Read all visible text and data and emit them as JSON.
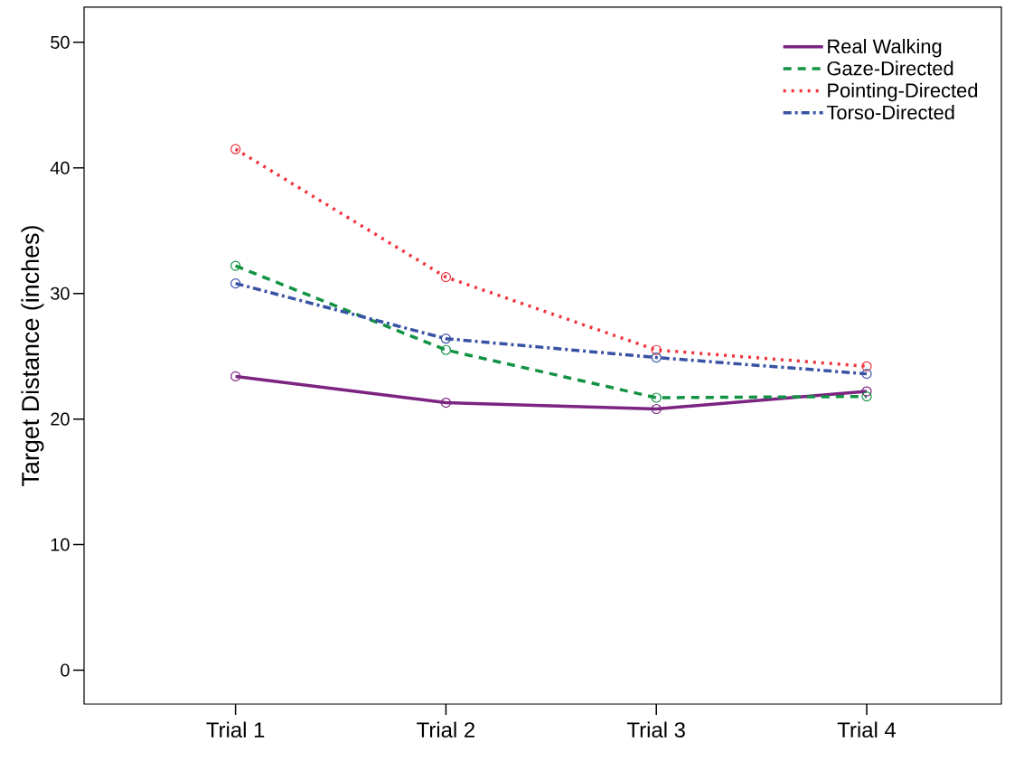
{
  "chart_data": {
    "type": "line",
    "ylabel": "Target Distance (inches)",
    "categories": [
      "Trial 1",
      "Trial 2",
      "Trial 3",
      "Trial 4"
    ],
    "ylim": [
      -2.7,
      52.8
    ],
    "yticks": [
      0,
      10,
      20,
      30,
      40,
      50
    ],
    "series": [
      {
        "name": "Real Walking",
        "color": "#7b2481",
        "line_style": "solid",
        "values": [
          23.4,
          21.3,
          20.8,
          22.2
        ]
      },
      {
        "name": "Gaze-Directed",
        "color": "#139244",
        "line_style": "dashed",
        "values": [
          32.2,
          25.5,
          21.7,
          21.8
        ]
      },
      {
        "name": "Pointing-Directed",
        "color": "#f0323b",
        "line_style": "dotted",
        "values": [
          41.5,
          31.3,
          25.5,
          24.2
        ]
      },
      {
        "name": "Torso-Directed",
        "color": "#3953a4",
        "line_style": "dashdot",
        "values": [
          30.8,
          26.4,
          24.9,
          23.6
        ]
      }
    ],
    "marker": "circle",
    "grid": false,
    "legend": "top right"
  }
}
